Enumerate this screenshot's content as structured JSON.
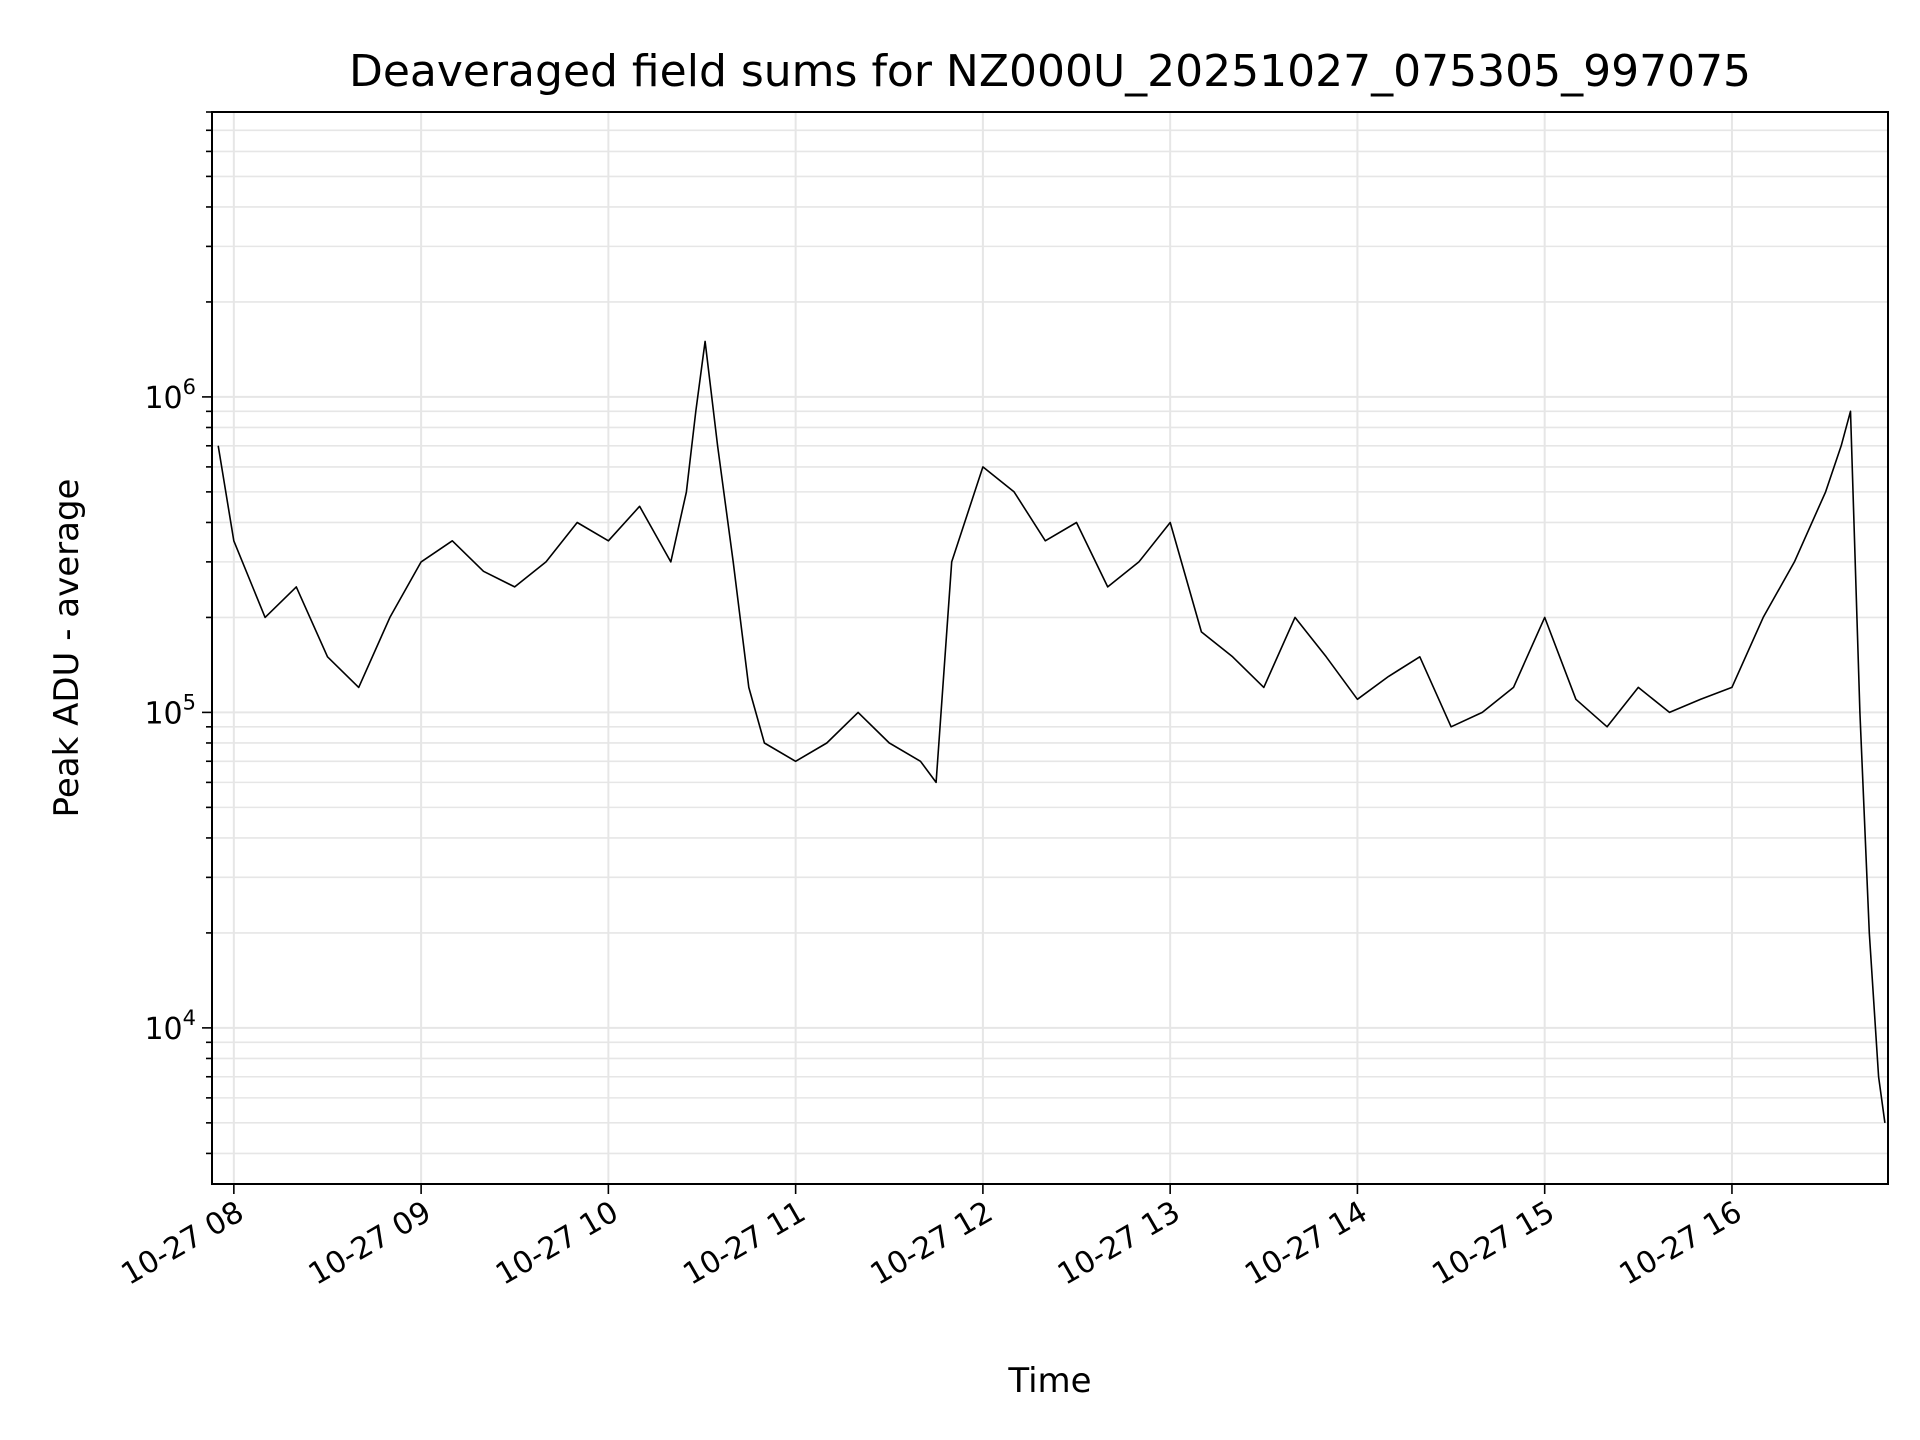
{
  "chart_data": {
    "type": "line",
    "title": "Deaveraged field sums for NZ000U_20251027_075305_997075",
    "xlabel": "Time",
    "ylabel": "Peak ADU - average",
    "y_scale": "log",
    "ylim": [
      3200,
      8000000
    ],
    "xlim": [
      "2025-10-27 07:53",
      "2025-10-27 16:50"
    ],
    "x_ticks": [
      "2025-10-27 08:00",
      "2025-10-27 09:00",
      "2025-10-27 10:00",
      "2025-10-27 11:00",
      "2025-10-27 12:00",
      "2025-10-27 13:00",
      "2025-10-27 14:00",
      "2025-10-27 15:00",
      "2025-10-27 16:00"
    ],
    "x_tick_labels": [
      "10-27 08",
      "10-27 09",
      "10-27 10",
      "10-27 11",
      "10-27 12",
      "10-27 13",
      "10-27 14",
      "10-27 15",
      "10-27 16"
    ],
    "y_ticks": [
      10000,
      100000,
      1000000
    ],
    "y_tick_base": "10",
    "y_tick_exponents": [
      "4",
      "5",
      "6"
    ],
    "grid": true,
    "line_color": "#000000",
    "grid_color": "#e6e6e6",
    "series": [
      {
        "x": [
          "2025-10-27 07:55",
          "2025-10-27 08:00",
          "2025-10-27 08:10",
          "2025-10-27 08:20",
          "2025-10-27 08:30",
          "2025-10-27 08:40",
          "2025-10-27 08:50",
          "2025-10-27 09:00",
          "2025-10-27 09:10",
          "2025-10-27 09:20",
          "2025-10-27 09:30",
          "2025-10-27 09:40",
          "2025-10-27 09:50",
          "2025-10-27 10:00",
          "2025-10-27 10:10",
          "2025-10-27 10:20",
          "2025-10-27 10:25",
          "2025-10-27 10:28",
          "2025-10-27 10:31",
          "2025-10-27 10:35",
          "2025-10-27 10:40",
          "2025-10-27 10:45",
          "2025-10-27 10:50",
          "2025-10-27 11:00",
          "2025-10-27 11:10",
          "2025-10-27 11:20",
          "2025-10-27 11:30",
          "2025-10-27 11:40",
          "2025-10-27 11:45",
          "2025-10-27 11:50",
          "2025-10-27 12:00",
          "2025-10-27 12:10",
          "2025-10-27 12:20",
          "2025-10-27 12:30",
          "2025-10-27 12:40",
          "2025-10-27 12:50",
          "2025-10-27 13:00",
          "2025-10-27 13:10",
          "2025-10-27 13:20",
          "2025-10-27 13:30",
          "2025-10-27 13:40",
          "2025-10-27 13:50",
          "2025-10-27 14:00",
          "2025-10-27 14:10",
          "2025-10-27 14:20",
          "2025-10-27 14:30",
          "2025-10-27 14:40",
          "2025-10-27 14:50",
          "2025-10-27 15:00",
          "2025-10-27 15:10",
          "2025-10-27 15:20",
          "2025-10-27 15:30",
          "2025-10-27 15:40",
          "2025-10-27 15:50",
          "2025-10-27 16:00",
          "2025-10-27 16:10",
          "2025-10-27 16:20",
          "2025-10-27 16:30",
          "2025-10-27 16:35",
          "2025-10-27 16:38",
          "2025-10-27 16:41",
          "2025-10-27 16:44",
          "2025-10-27 16:47",
          "2025-10-27 16:49"
        ],
        "values": [
          700000,
          350000,
          200000,
          250000,
          150000,
          120000,
          200000,
          300000,
          350000,
          280000,
          250000,
          300000,
          400000,
          350000,
          450000,
          300000,
          500000,
          900000,
          1500000,
          700000,
          300000,
          120000,
          80000,
          70000,
          80000,
          100000,
          80000,
          70000,
          60000,
          300000,
          600000,
          500000,
          350000,
          400000,
          250000,
          300000,
          400000,
          180000,
          150000,
          120000,
          200000,
          150000,
          110000,
          130000,
          150000,
          90000,
          100000,
          120000,
          200000,
          110000,
          90000,
          120000,
          100000,
          110000,
          120000,
          200000,
          300000,
          500000,
          700000,
          900000,
          100000,
          20000,
          7000,
          5000
        ]
      }
    ]
  }
}
